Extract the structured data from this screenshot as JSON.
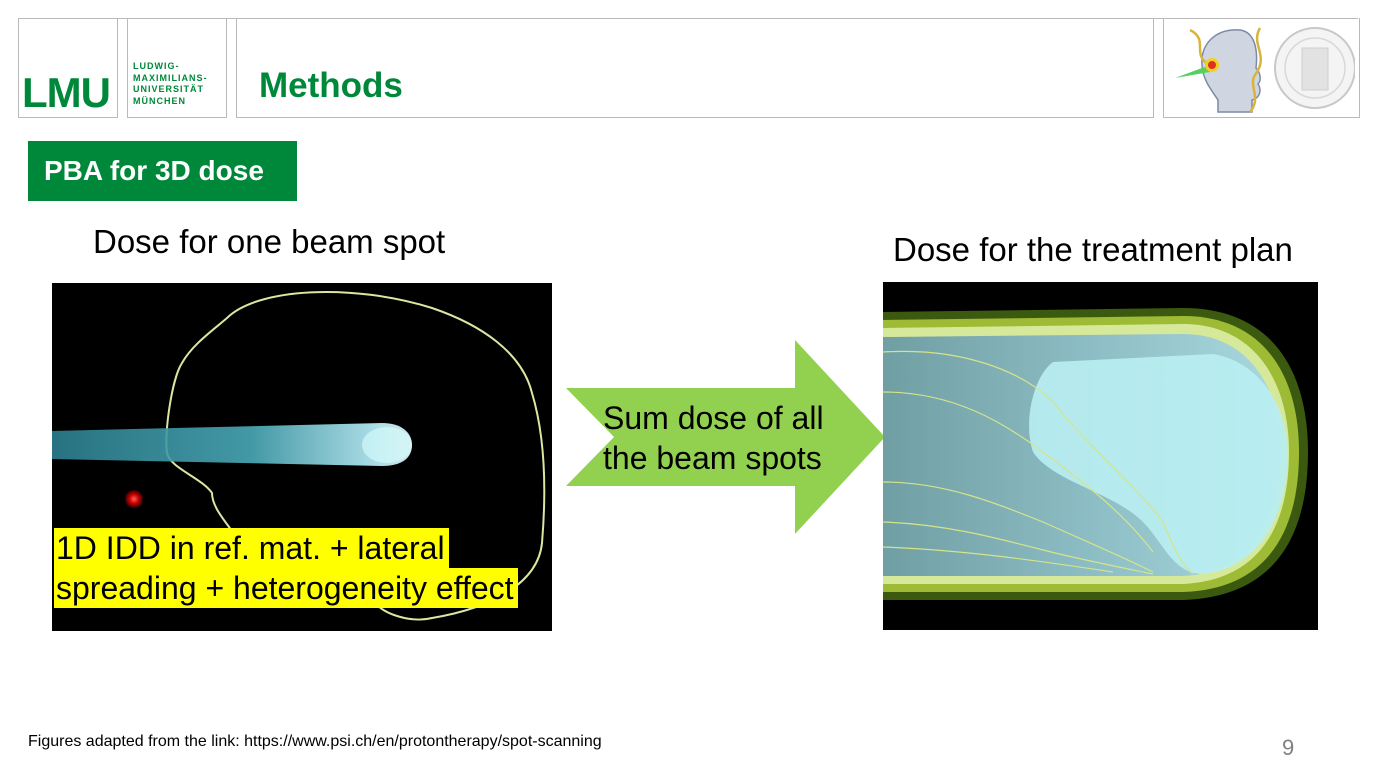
{
  "header": {
    "logo_text": "LMU",
    "university_lines": [
      "LUDWIG-",
      "MAXIMILIANS-",
      "UNIVERSITÄT",
      "MÜNCHEN"
    ],
    "title": "Methods"
  },
  "section_label": "PBA for 3D dose",
  "left": {
    "caption": "Dose for one beam spot",
    "highlight_lines": [
      "1D IDD in ref. mat. + lateral",
      "spreading + heterogeneity effect"
    ]
  },
  "arrow": {
    "lines": [
      "Sum dose of all",
      "the beam spots"
    ],
    "color": "#92d050"
  },
  "right": {
    "caption": "Dose for the treatment plan"
  },
  "footer": {
    "source": "Figures adapted from the link: https://www.psi.ch/en/protontherapy/spot-scanning",
    "page_number": "9"
  },
  "colors": {
    "brand_green": "#00883a",
    "highlight_yellow": "#ffff00"
  }
}
